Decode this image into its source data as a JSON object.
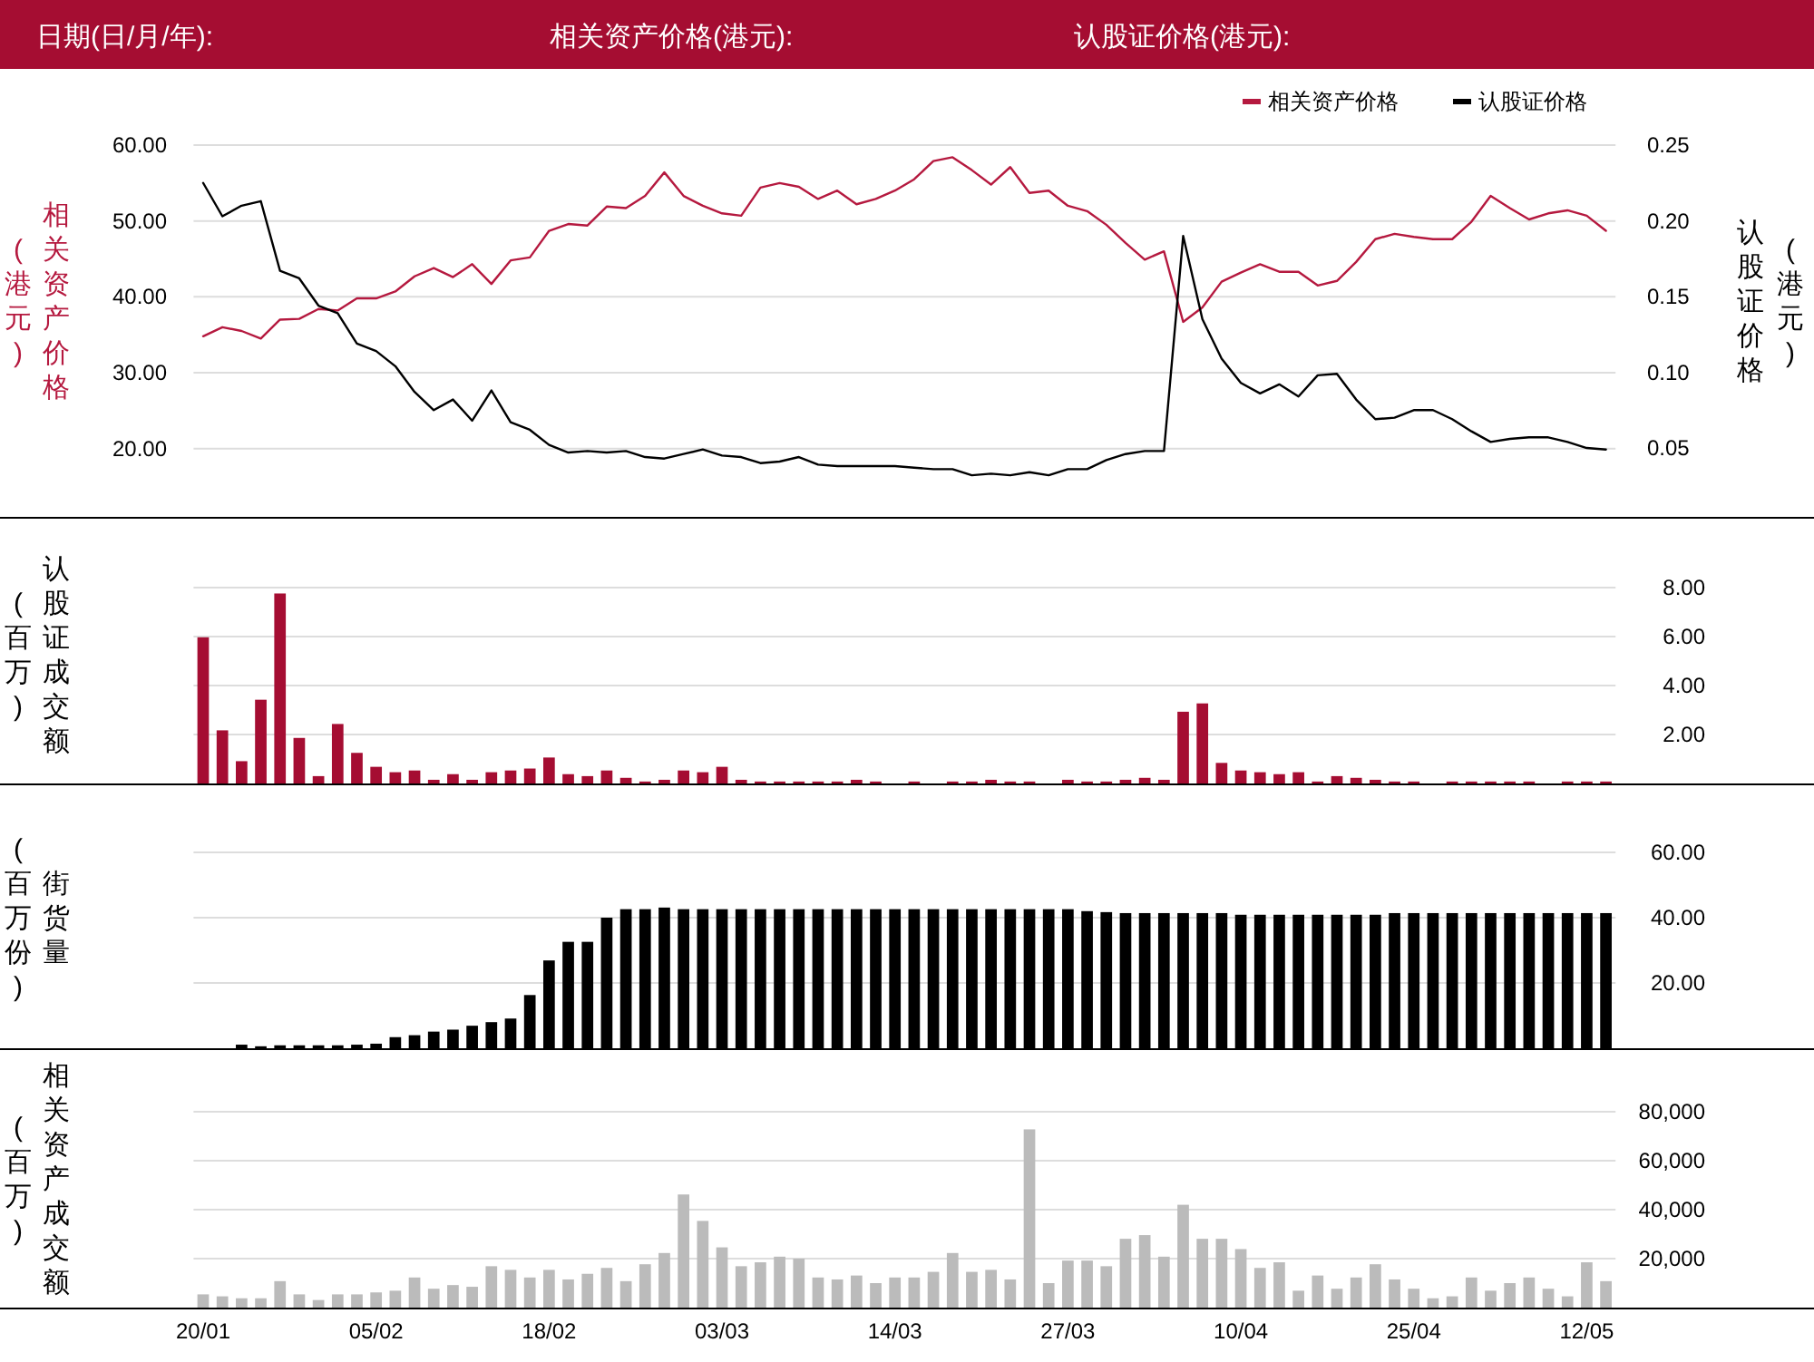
{
  "chart_data": [
    {
      "type": "line",
      "annotations": [
        "日期(日/月/年):",
        "相关资产价格(港元):",
        "认股证价格(港元):"
      ],
      "categories": [
        null,
        null,
        null,
        null,
        null,
        null,
        null,
        null,
        null,
        null,
        null,
        null,
        null,
        null,
        null,
        null,
        null,
        null,
        null,
        null,
        null,
        null,
        null,
        null,
        null,
        null,
        null,
        null,
        null,
        null,
        null,
        null,
        null,
        null,
        null,
        null,
        null,
        null,
        null,
        null,
        null,
        null,
        null,
        null,
        null,
        null,
        null,
        null,
        null,
        null,
        null,
        null,
        null,
        null,
        null,
        null,
        null,
        null,
        null,
        null,
        null,
        null,
        null,
        null,
        null,
        null,
        null,
        null,
        null,
        null,
        null,
        null,
        null,
        null
      ],
      "series": [
        {
          "name": "相关资产价格",
          "color": "#b5193f",
          "values": [
            34.8,
            36.0,
            35.5,
            34.5,
            37.0,
            37.1,
            38.4,
            38.2,
            39.8,
            39.8,
            40.7,
            42.7,
            43.8,
            42.6,
            44.3,
            41.7,
            44.8,
            45.2,
            48.7,
            49.6,
            49.4,
            51.9,
            51.7,
            53.3,
            56.4,
            53.3,
            52.0,
            51.0,
            50.7,
            54.4,
            55.0,
            54.5,
            52.9,
            54.0,
            52.2,
            52.9,
            54.0,
            55.5,
            57.9,
            58.4,
            56.7,
            54.8,
            57.1,
            53.7,
            54.0,
            52.0,
            51.3,
            49.5,
            47.1,
            44.9,
            46.0,
            36.7,
            38.6,
            42.0,
            43.2,
            44.3,
            43.3,
            43.3,
            41.5,
            42.1,
            44.6,
            47.6,
            48.3,
            47.9,
            47.6,
            47.6,
            49.9,
            53.3,
            51.7,
            50.2,
            51.0,
            51.4,
            50.7,
            48.7
          ]
        },
        {
          "name": "认股证价格",
          "color": "#000000",
          "axis": "y2",
          "values": [
            0.225,
            0.203,
            0.21,
            0.213,
            0.167,
            0.162,
            0.144,
            0.139,
            0.119,
            0.114,
            0.104,
            0.087,
            0.075,
            0.082,
            0.068,
            0.088,
            0.067,
            0.062,
            0.052,
            0.047,
            0.048,
            0.047,
            0.048,
            0.044,
            0.043,
            0.046,
            0.049,
            0.045,
            0.044,
            0.04,
            0.041,
            0.044,
            0.039,
            0.038,
            0.038,
            0.038,
            0.038,
            0.037,
            0.036,
            0.036,
            0.032,
            0.033,
            0.032,
            0.034,
            0.032,
            0.036,
            0.036,
            0.042,
            0.046,
            0.048,
            0.048,
            0.19,
            0.135,
            0.109,
            0.093,
            0.086,
            0.092,
            0.084,
            0.098,
            0.099,
            0.082,
            0.069,
            0.07,
            0.075,
            0.075,
            0.069,
            0.061,
            0.054,
            0.056,
            0.057,
            0.057,
            0.054,
            0.05,
            0.049
          ]
        }
      ],
      "ylabel": "相关资产价格(港元)",
      "y2label": "认股证价格(港元)",
      "ylim": [
        11,
        60
      ],
      "yticks": [
        {
          "value": 20,
          "label": "20.00"
        },
        {
          "value": 30,
          "label": "30.00"
        },
        {
          "value": 40,
          "label": "40.00"
        },
        {
          "value": 50,
          "label": "50.00"
        },
        {
          "value": 60,
          "label": "60.00"
        }
      ],
      "y2lim": [
        0.0045,
        0.25
      ],
      "y2ticks": [
        {
          "value": 0.05,
          "label": "0.05"
        },
        {
          "value": 0.1,
          "label": "0.10"
        },
        {
          "value": 0.15,
          "label": "0.15"
        },
        {
          "value": 0.2,
          "label": "0.20"
        },
        {
          "value": 0.25,
          "label": "0.25"
        }
      ],
      "grid": "y",
      "legend": "top right",
      "tick_labels": "y"
    },
    {
      "type": "bar",
      "color": "#a50d32",
      "ylabel": "认股证成交额(百万)",
      "categories": [
        null,
        null,
        null,
        null,
        null,
        null,
        null,
        null,
        null,
        null,
        null,
        null,
        null,
        null,
        null,
        null,
        null,
        null,
        null,
        null,
        null,
        null,
        null,
        null,
        null,
        null,
        null,
        null,
        null,
        null,
        null,
        null,
        null,
        null,
        null,
        null,
        null,
        null,
        null,
        null,
        null,
        null,
        null,
        null,
        null,
        null,
        null,
        null,
        null,
        null,
        null,
        null,
        null,
        null,
        null,
        null,
        null,
        null,
        null,
        null,
        null,
        null,
        null,
        null,
        null,
        null,
        null,
        null,
        null,
        null,
        null,
        null,
        null,
        null
      ],
      "values": [
        5.97,
        2.17,
        0.91,
        3.42,
        7.76,
        1.86,
        0.3,
        2.43,
        1.25,
        0.68,
        0.46,
        0.53,
        0.15,
        0.38,
        0.15,
        0.46,
        0.53,
        0.61,
        1.06,
        0.38,
        0.3,
        0.53,
        0.23,
        0.08,
        0.15,
        0.53,
        0.46,
        0.68,
        0.15,
        0.08,
        0.08,
        0.08,
        0.08,
        0.08,
        0.15,
        0.08,
        0,
        0.08,
        0,
        0.08,
        0.08,
        0.15,
        0.08,
        0.08,
        0,
        0.15,
        0.08,
        0.08,
        0.15,
        0.23,
        0.15,
        2.93,
        3.27,
        0.84,
        0.53,
        0.46,
        0.38,
        0.46,
        0.08,
        0.3,
        0.23,
        0.15,
        0.08,
        0.08,
        0,
        0.08,
        0.08,
        0.08,
        0.08,
        0.08,
        0,
        0.08,
        0.08,
        0.08
      ],
      "ylim": [
        0,
        8
      ],
      "yticks": [
        {
          "value": 2,
          "label": "2.00"
        },
        {
          "value": 4,
          "label": "4.00"
        },
        {
          "value": 6,
          "label": "6.00"
        },
        {
          "value": 8,
          "label": "8.00"
        }
      ],
      "grid": "y",
      "tick_labels": "y"
    },
    {
      "type": "bar",
      "color": "#000000",
      "ylabel": "街货量(百万份)",
      "categories": [
        null,
        null,
        null,
        null,
        null,
        null,
        null,
        null,
        null,
        null,
        null,
        null,
        null,
        null,
        null,
        null,
        null,
        null,
        null,
        null,
        null,
        null,
        null,
        null,
        null,
        null,
        null,
        null,
        null,
        null,
        null,
        null,
        null,
        null,
        null,
        null,
        null,
        null,
        null,
        null,
        null,
        null,
        null,
        null,
        null,
        null,
        null,
        null,
        null,
        null,
        null,
        null,
        null,
        null,
        null,
        null,
        null,
        null,
        null,
        null,
        null,
        null,
        null,
        null,
        null,
        null,
        null,
        null,
        null,
        null,
        null,
        null,
        null,
        null
      ],
      "values": [
        0,
        0,
        1.1,
        0.6,
        0.9,
        0.9,
        0.9,
        0.9,
        1.1,
        1.4,
        3.4,
        4.0,
        5.1,
        5.7,
        6.9,
        8.0,
        9.1,
        16.3,
        26.9,
        32.6,
        32.6,
        40.0,
        42.6,
        42.6,
        43.1,
        42.6,
        42.6,
        42.6,
        42.6,
        42.6,
        42.6,
        42.6,
        42.6,
        42.6,
        42.6,
        42.6,
        42.6,
        42.6,
        42.6,
        42.6,
        42.6,
        42.6,
        42.6,
        42.6,
        42.6,
        42.6,
        42.0,
        41.7,
        41.4,
        41.4,
        41.4,
        41.4,
        41.4,
        41.4,
        40.9,
        40.9,
        40.9,
        40.9,
        40.9,
        40.9,
        40.9,
        40.9,
        41.4,
        41.4,
        41.4,
        41.4,
        41.4,
        41.4,
        41.4,
        41.4,
        41.4,
        41.4,
        41.4,
        41.4
      ],
      "ylim": [
        0,
        60
      ],
      "yticks": [
        {
          "value": 20,
          "label": "20.00"
        },
        {
          "value": 40,
          "label": "40.00"
        },
        {
          "value": 60,
          "label": "60.00"
        }
      ],
      "grid": "y",
      "tick_labels": "y"
    },
    {
      "type": "bar",
      "color": "#bbbbbb",
      "ylabel": "相关资产成交额(百万)",
      "categories": [
        "20/01",
        null,
        null,
        null,
        null,
        null,
        null,
        null,
        null,
        "05/02",
        null,
        null,
        null,
        null,
        null,
        null,
        null,
        null,
        "18/02",
        null,
        null,
        null,
        null,
        null,
        null,
        null,
        null,
        "03/03",
        null,
        null,
        null,
        null,
        null,
        null,
        null,
        null,
        "14/03",
        null,
        null,
        null,
        null,
        null,
        null,
        null,
        null,
        "27/03",
        null,
        null,
        null,
        null,
        null,
        null,
        null,
        null,
        "10/04",
        null,
        null,
        null,
        null,
        null,
        null,
        null,
        null,
        "25/04",
        null,
        null,
        null,
        null,
        null,
        null,
        null,
        null,
        "12/05",
        null
      ],
      "values": [
        5400,
        4600,
        3800,
        3800,
        10800,
        5400,
        3100,
        5400,
        5400,
        6200,
        6900,
        12300,
        7700,
        9200,
        8500,
        16900,
        15400,
        12300,
        15400,
        11500,
        13800,
        16200,
        10800,
        17700,
        22300,
        46200,
        35400,
        24600,
        16900,
        18500,
        20800,
        20000,
        12300,
        11500,
        13100,
        10000,
        12300,
        12300,
        14600,
        22300,
        14600,
        15400,
        11500,
        72800,
        10000,
        19200,
        19200,
        16900,
        28100,
        29600,
        20800,
        42000,
        28100,
        28100,
        23900,
        16200,
        18500,
        6900,
        13100,
        7700,
        12300,
        17700,
        11500,
        7700,
        3800,
        4600,
        12300,
        6900,
        10000,
        12300,
        7700,
        4600,
        18500,
        10800
      ],
      "ylim": [
        0,
        80000
      ],
      "yticks": [
        {
          "value": 20000,
          "label": "20,000"
        },
        {
          "value": 40000,
          "label": "40,000"
        },
        {
          "value": 60000,
          "label": "60,000"
        },
        {
          "value": 80000,
          "label": "80,000"
        }
      ],
      "grid": "y"
    }
  ]
}
